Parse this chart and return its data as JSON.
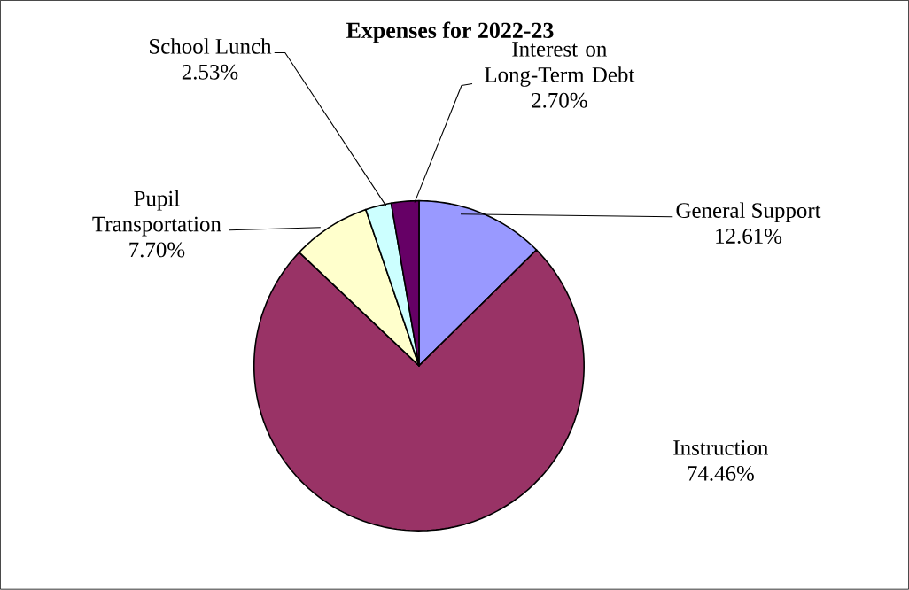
{
  "chart_data": {
    "type": "pie",
    "title": "Expenses for 2022-23",
    "categories": [
      "General Support",
      "Instruction",
      "Pupil Transportation",
      "School Lunch",
      "Interest on Long-Term Debt"
    ],
    "values": [
      12.61,
      74.46,
      7.7,
      2.53,
      2.7
    ],
    "value_labels": [
      "12.61%",
      "74.46%",
      "7.70%",
      "2.53%",
      "2.70%"
    ],
    "colors": [
      "#9999ff",
      "#993366",
      "#ffffcc",
      "#ccffff",
      "#660066"
    ]
  }
}
